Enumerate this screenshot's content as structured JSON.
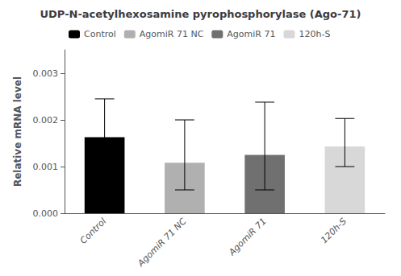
{
  "chart_data": {
    "type": "bar",
    "title": "UDP-N-acetylhexosamine pyrophosphorylase (Ago-71)",
    "ylabel": "Relative mRNA level",
    "categories": [
      "Control",
      "AgomiR 71 NC",
      "AgomiR 71",
      "120h-S"
    ],
    "values": [
      0.00163,
      0.00108,
      0.00125,
      0.00143
    ],
    "errors_upper": [
      0.00082,
      0.00092,
      0.00113,
      0.0006
    ],
    "errors_lower": [
      0.00063,
      0.00058,
      0.00075,
      0.00043
    ],
    "colors": [
      "#000000",
      "#b0b0b0",
      "#707070",
      "#d8d8d8"
    ],
    "ylim": [
      0,
      0.0035
    ],
    "yticks": [
      {
        "value": 0,
        "label": "0.000"
      },
      {
        "value": 0.001,
        "label": "0.001"
      },
      {
        "value": 0.002,
        "label": "0.002"
      },
      {
        "value": 0.003,
        "label": "0.003"
      }
    ],
    "grid": false,
    "legend": "upper left"
  }
}
